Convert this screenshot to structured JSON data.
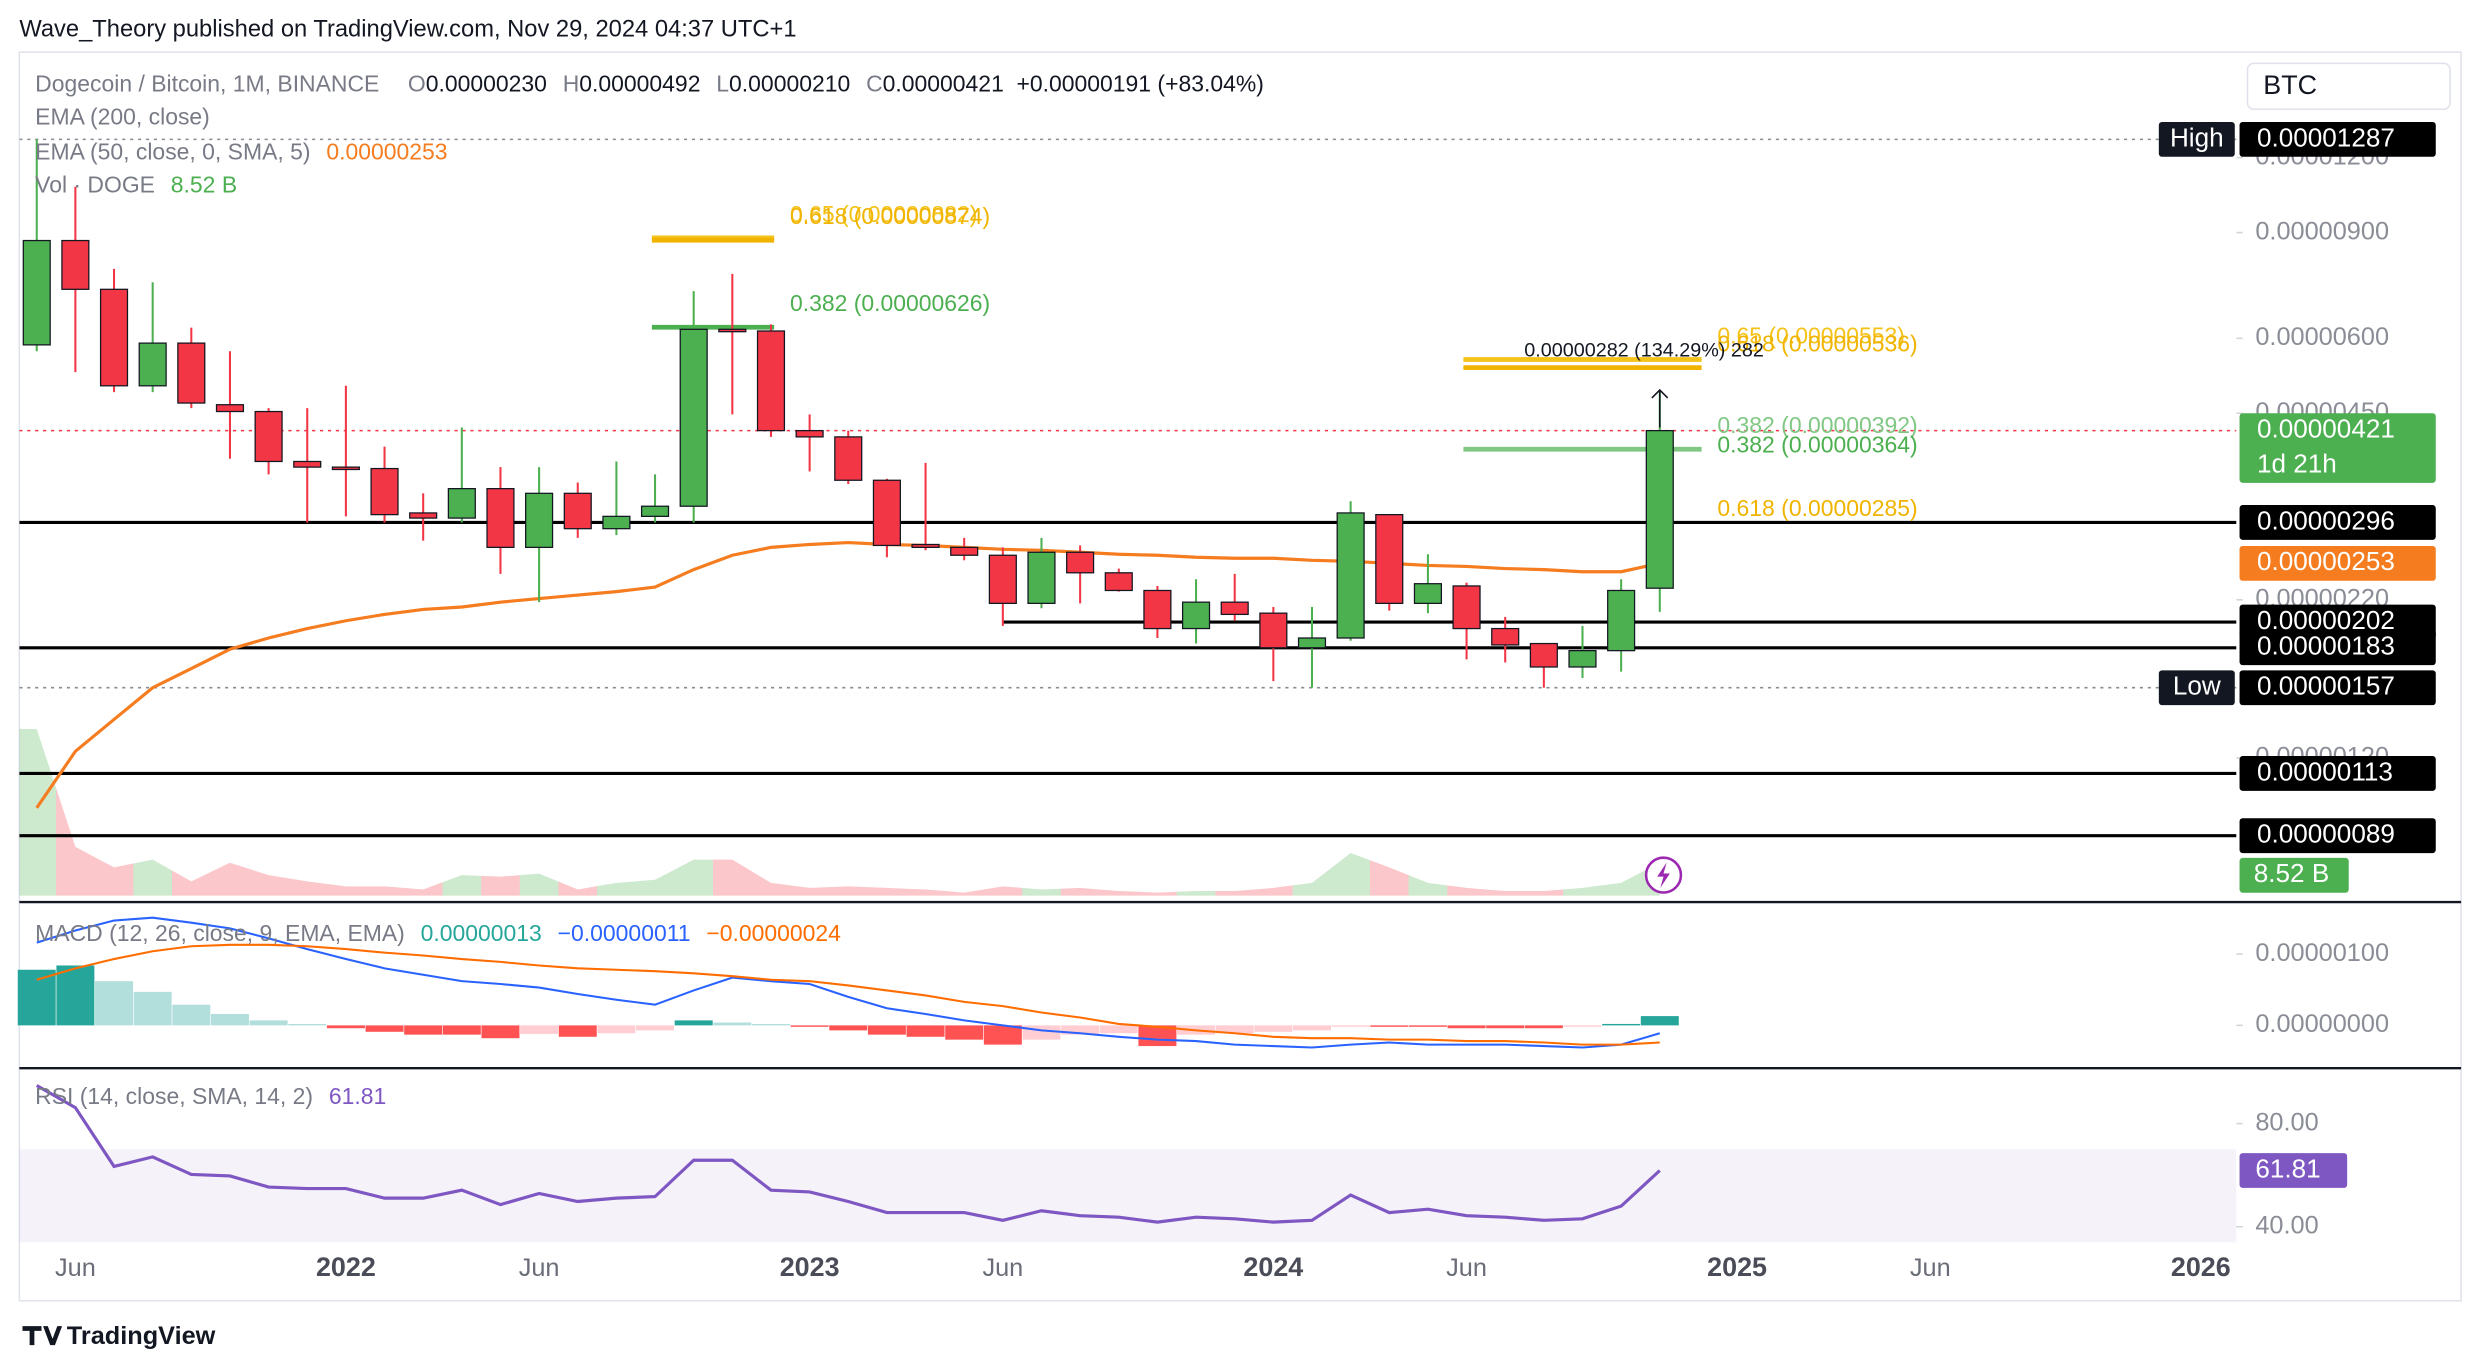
{
  "header": {
    "publisher": "Wave_Theory published on TradingView.com, Nov 29, 2024 04:37 UTC+1",
    "currency": "BTC",
    "brand": "TradingView"
  },
  "chart_data": {
    "type": "candlestick",
    "symbol": "Dogecoin / Bitcoin, 1M, BINANCE",
    "ohlc_prefixes": [
      "O",
      "H",
      "L",
      "C"
    ],
    "ohlc_labels": [
      "0.00000230",
      "0.00000492",
      "0.00000210",
      "0.00000421"
    ],
    "change_label": "+0.00000191 (+83.04%)",
    "x_labels": [
      "Jun",
      "2022",
      "Jun",
      "2023",
      "Jun",
      "2024",
      "Jun",
      "2025",
      "Jun",
      "2026"
    ],
    "open": [
      5.85e-06,
      8.73e-06,
      7.24e-06,
      5e-06,
      5.89e-06,
      4.65e-06,
      4.53e-06,
      3.74e-06,
      3.66e-06,
      3.64e-06,
      3.07e-06,
      3.01e-06,
      3.37e-06,
      2.69e-06,
      3.31e-06,
      2.89e-06,
      3.03e-06,
      3.15e-06,
      6.21e-06,
      6.17e-06,
      4.21e-06,
      4.11e-06,
      3.48e-06,
      2.72e-06,
      2.69e-06,
      2.61e-06,
      2.17e-06,
      2.64e-06,
      2.44e-06,
      2.28e-06,
      1.97e-06,
      2.18e-06,
      2.09e-06,
      1.83e-06,
      1.9e-06,
      3.05e-06,
      2.17e-06,
      2.32e-06,
      1.97e-06,
      1.86e-06,
      1.7e-06,
      1.81e-06,
      2.3e-06
    ],
    "high": [
      1.287e-05,
      1.073e-05,
      7.83e-06,
      7.44e-06,
      6.25e-06,
      5.71e-06,
      4.59e-06,
      4.59e-06,
      5e-06,
      3.96e-06,
      3.31e-06,
      4.26e-06,
      3.66e-06,
      3.66e-06,
      3.45e-06,
      3.74e-06,
      3.56e-06,
      7.19e-06,
      7.68e-06,
      6.33e-06,
      4.48e-06,
      4.21e-06,
      3.5e-06,
      3.72e-06,
      2.79e-06,
      2.69e-06,
      2.79e-06,
      2.71e-06,
      2.48e-06,
      2.32e-06,
      2.38e-06,
      2.43e-06,
      2.14e-06,
      2.14e-06,
      3.21e-06,
      3.05e-06,
      2.62e-06,
      2.35e-06,
      2.06e-06,
      1.86e-06,
      1.99e-06,
      2.38e-06,
      4.92e-06
    ],
    "low": [
      5.71e-06,
      5.27e-06,
      4.88e-06,
      4.88e-06,
      4.59e-06,
      3.78e-06,
      3.56e-06,
      2.96e-06,
      3.03e-06,
      2.96e-06,
      2.76e-06,
      2.96e-06,
      2.43e-06,
      2.18e-06,
      2.79e-06,
      2.82e-06,
      2.96e-06,
      2.96e-06,
      4.48e-06,
      4.11e-06,
      3.6e-06,
      3.43e-06,
      2.59e-06,
      2.66e-06,
      2.56e-06,
      1.99e-06,
      2.13e-06,
      2.17e-06,
      2.27e-06,
      1.9e-06,
      1.86e-06,
      2.03e-06,
      1.61e-06,
      1.57e-06,
      1.88e-06,
      2.11e-06,
      2.09e-06,
      1.75e-06,
      1.73e-06,
      1.57e-06,
      1.63e-06,
      1.67e-06,
      2.1e-06
    ],
    "close": [
      8.73e-06,
      7.24e-06,
      5e-06,
      5.89e-06,
      4.68e-06,
      4.53e-06,
      3.74e-06,
      3.66e-06,
      3.64e-06,
      3.05e-06,
      3.01e-06,
      3.37e-06,
      2.69e-06,
      3.31e-06,
      2.89e-06,
      3.03e-06,
      3.15e-06,
      6.21e-06,
      6.17e-06,
      4.21e-06,
      4.11e-06,
      3.48e-06,
      2.71e-06,
      2.69e-06,
      2.61e-06,
      2.17e-06,
      2.64e-06,
      2.44e-06,
      2.28e-06,
      1.97e-06,
      2.18e-06,
      2.08e-06,
      1.83e-06,
      1.9e-06,
      3.07e-06,
      2.17e-06,
      2.34e-06,
      1.97e-06,
      1.85e-06,
      1.7e-06,
      1.81e-06,
      2.28e-06,
      4.21e-06
    ],
    "up_color": "#4caf50",
    "down_color": "#f23645",
    "log_scale": true,
    "ylim": [
      6.9e-07,
      1.798e-05
    ],
    "yticks": [
      {
        "value": 1.2e-05,
        "label": "0.00001200"
      },
      {
        "value": 9e-06,
        "label": "0.00000900"
      },
      {
        "value": 6e-06,
        "label": "0.00000600"
      },
      {
        "value": 4.5e-06,
        "label": "0.00000450"
      },
      {
        "value": 2.2e-06,
        "label": "0.00000220"
      },
      {
        "value": 1.2e-06,
        "label": "0.00000120"
      }
    ],
    "ema200": {
      "name": "EMA (200, close)"
    },
    "ema50": {
      "name": "EMA (50, close, 0, SMA, 5)",
      "color": "#f57c1f",
      "values": [
        9.9e-07,
        1.23e-06,
        1.39e-06,
        1.57e-06,
        1.69e-06,
        1.82e-06,
        1.9e-06,
        1.97e-06,
        2.03e-06,
        2.08e-06,
        2.12e-06,
        2.14e-06,
        2.18e-06,
        2.21e-06,
        2.24e-06,
        2.27e-06,
        2.31e-06,
        2.47e-06,
        2.61e-06,
        2.69e-06,
        2.72e-06,
        2.74e-06,
        2.72e-06,
        2.71e-06,
        2.69e-06,
        2.67e-06,
        2.66e-06,
        2.64e-06,
        2.62e-06,
        2.61e-06,
        2.59e-06,
        2.58e-06,
        2.58e-06,
        2.56e-06,
        2.55e-06,
        2.53e-06,
        2.51e-06,
        2.5e-06,
        2.48e-06,
        2.47e-06,
        2.45e-06,
        2.45e-06,
        2.53e-06
      ]
    },
    "volume": {
      "name": "Vol · DOGE",
      "color": "#4caf50",
      "last_label": "8.52 B",
      "values": [
        43,
        12.6,
        7.3,
        9.3,
        3.7,
        8.5,
        5.3,
        3.7,
        2.4,
        2.4,
        1.6,
        5.3,
        4.9,
        5.7,
        1.6,
        3.3,
        4.1,
        9.3,
        9.3,
        3.3,
        2,
        2.4,
        2,
        1.6,
        0.8,
        2.4,
        1.6,
        2,
        1.2,
        0.8,
        1.2,
        1.2,
        2,
        3.3,
        11,
        7.3,
        3.3,
        2,
        1.2,
        1.2,
        2,
        3.3,
        8.52
      ]
    },
    "badges": [
      {
        "value": 1.287e-05,
        "label": "0.00001287",
        "tag": "High",
        "color": "#000000",
        "line": "dotted",
        "line_color": "#8a8d96"
      },
      {
        "value": 4.21e-06,
        "label": "0.00000421",
        "sub": "1d 21h",
        "color": "#4caf50",
        "line": "dotted",
        "line_color": "#f23645"
      },
      {
        "value": 2.96e-06,
        "label": "0.00000296",
        "color": "#000000",
        "line": "solid",
        "line_color": "#000000"
      },
      {
        "value": 2.53e-06,
        "label": "0.00000253",
        "color": "#f57c1f",
        "line": "none"
      },
      {
        "value": 2.02e-06,
        "label": "0.00000202",
        "color": "#000000",
        "line": "partial",
        "line_color": "#000000"
      },
      {
        "value": 1.83e-06,
        "label": "0.00000183",
        "color": "#000000",
        "line": "solid",
        "line_color": "#000000"
      },
      {
        "value": 1.57e-06,
        "label": "0.00000157",
        "tag": "Low",
        "color": "#000000",
        "line": "dotted",
        "line_color": "#8a8d96"
      },
      {
        "value": 1.13e-06,
        "label": "0.00000113",
        "color": "#000000",
        "line": "solid",
        "line_color": "#000000"
      },
      {
        "value": 8.9e-07,
        "label": "0.00000089",
        "color": "#000000",
        "line": "solid",
        "line_color": "#000000"
      }
    ],
    "fib_2021": [
      {
        "label": "0.65 (0.00000882)",
        "value": 8.82e-06,
        "color": "#f5c218",
        "line": true
      },
      {
        "label": "0.618 (0.00000874)",
        "value": 8.74e-06,
        "color": "#f0b400",
        "line": true
      },
      {
        "label": "0.382 (0.00000626)",
        "value": 6.26e-06,
        "color": "#4caf50",
        "line": true
      }
    ],
    "fib_2024": [
      {
        "label": "0.65 (0.00000553)",
        "value": 5.53e-06,
        "color": "#f5c218",
        "line": true
      },
      {
        "label": "0.618 (0.00000536)",
        "value": 5.36e-06,
        "color": "#f0b400",
        "line": true
      },
      {
        "label": "0.382 (0.00000392)",
        "value": 3.92e-06,
        "color": "#81c784",
        "line": true
      },
      {
        "label": "0.382 (0.00000364)",
        "value": 3.64e-06,
        "color": "#4caf50",
        "line": false
      },
      {
        "label": "0.618 (0.00000285)",
        "value": 2.85e-06,
        "color": "#f0b400",
        "line": false
      }
    ],
    "measure": "0.00000282 (134.29%) 282",
    "macd": {
      "name": "MACD (12, 26, close, 9, EMA, EMA)",
      "labels": [
        "0.00000013",
        "−0.00000011",
        "−0.00000024"
      ],
      "ylim": [
        -6e-07,
        1.73e-06
      ],
      "yticks": [
        {
          "value": 1e-06,
          "label": "0.00000100"
        },
        {
          "value": 0,
          "label": "0.00000000"
        }
      ],
      "histogram": [
        7.8e-07,
        8.4e-07,
        6.2e-07,
        4.7e-07,
        2.9e-07,
        1.6e-07,
        7e-08,
        2e-08,
        -4e-08,
        -9e-08,
        -1.3e-07,
        -1.3e-07,
        -1.8e-07,
        -1.2e-07,
        -1.6e-07,
        -1.1e-07,
        -7e-08,
        7e-08,
        4e-08,
        2e-08,
        -2e-08,
        -7e-08,
        -1.3e-07,
        -1.6e-07,
        -2e-07,
        -2.7e-07,
        -2e-07,
        -1.3e-07,
        -1.1e-07,
        -2.9e-07,
        -1.3e-07,
        -1.1e-07,
        -9e-08,
        -7e-08,
        -2e-08,
        -2e-08,
        -2e-08,
        -4e-08,
        -4e-08,
        -4e-08,
        -2e-08,
        2e-08,
        1.3e-07
      ],
      "macd_color": "#2962ff",
      "macd": [
        1.16e-06,
        1.33e-06,
        1.47e-06,
        1.51e-06,
        1.44e-06,
        1.36e-06,
        1.22e-06,
        1.07e-06,
        9.3e-07,
        8e-07,
        7.1e-07,
        6.2e-07,
        5.8e-07,
        5.3e-07,
        4.4e-07,
        3.6e-07,
        2.9e-07,
        4.9e-07,
        6.7e-07,
        6.2e-07,
        5.8e-07,
        4e-07,
        2.4e-07,
        1.6e-07,
        7e-08,
        0,
        -7e-08,
        -1.1e-07,
        -1.6e-07,
        -2e-07,
        -2.2e-07,
        -2.7e-07,
        -2.9e-07,
        -3.1e-07,
        -2.7e-07,
        -2.4e-07,
        -2.7e-07,
        -2.7e-07,
        -2.7e-07,
        -2.9e-07,
        -3.1e-07,
        -2.7e-07,
        -1.1e-07
      ],
      "signal_color": "#ff6d00",
      "signal": [
        6.4e-07,
        8e-07,
        9.3e-07,
        1.04e-06,
        1.11e-06,
        1.13e-06,
        1.13e-06,
        1.11e-06,
        1.07e-06,
        1.02e-06,
        9.8e-07,
        9.3e-07,
        8.9e-07,
        8.4e-07,
        8e-07,
        7.8e-07,
        7.6e-07,
        7.3e-07,
        6.9e-07,
        6.4e-07,
        6.2e-07,
        5.6e-07,
        4.9e-07,
        4.2e-07,
        3.3e-07,
        2.7e-07,
        1.8e-07,
        1.1e-07,
        2e-08,
        -2e-08,
        -7e-08,
        -1.1e-07,
        -1.6e-07,
        -1.8e-07,
        -1.8e-07,
        -2e-07,
        -2e-07,
        -2.2e-07,
        -2.2e-07,
        -2.4e-07,
        -2.7e-07,
        -2.7e-07,
        -2.4e-07
      ]
    },
    "rsi": {
      "name": "RSI (14, close, SMA, 14, 2)",
      "color": "#7e57c2",
      "ylim": [
        34,
        101.5
      ],
      "band": [
        30,
        70
      ],
      "yticks": [
        {
          "value": 80,
          "label": "80.00"
        },
        {
          "value": 40,
          "label": "40.00"
        }
      ],
      "values": [
        94.8,
        86.2,
        63.4,
        67.1,
        60.3,
        59.7,
        55.4,
        54.8,
        54.8,
        51.1,
        51.1,
        54.2,
        48.6,
        52.9,
        49.8,
        51.1,
        51.7,
        65.8,
        65.8,
        54.2,
        53.5,
        49.8,
        45.5,
        45.5,
        45.5,
        42.5,
        46.2,
        44.3,
        43.7,
        41.8,
        43.7,
        43.1,
        41.8,
        42.5,
        52.3,
        45.5,
        46.8,
        44.3,
        43.7,
        42.5,
        43.1,
        48.0,
        61.81
      ]
    }
  }
}
